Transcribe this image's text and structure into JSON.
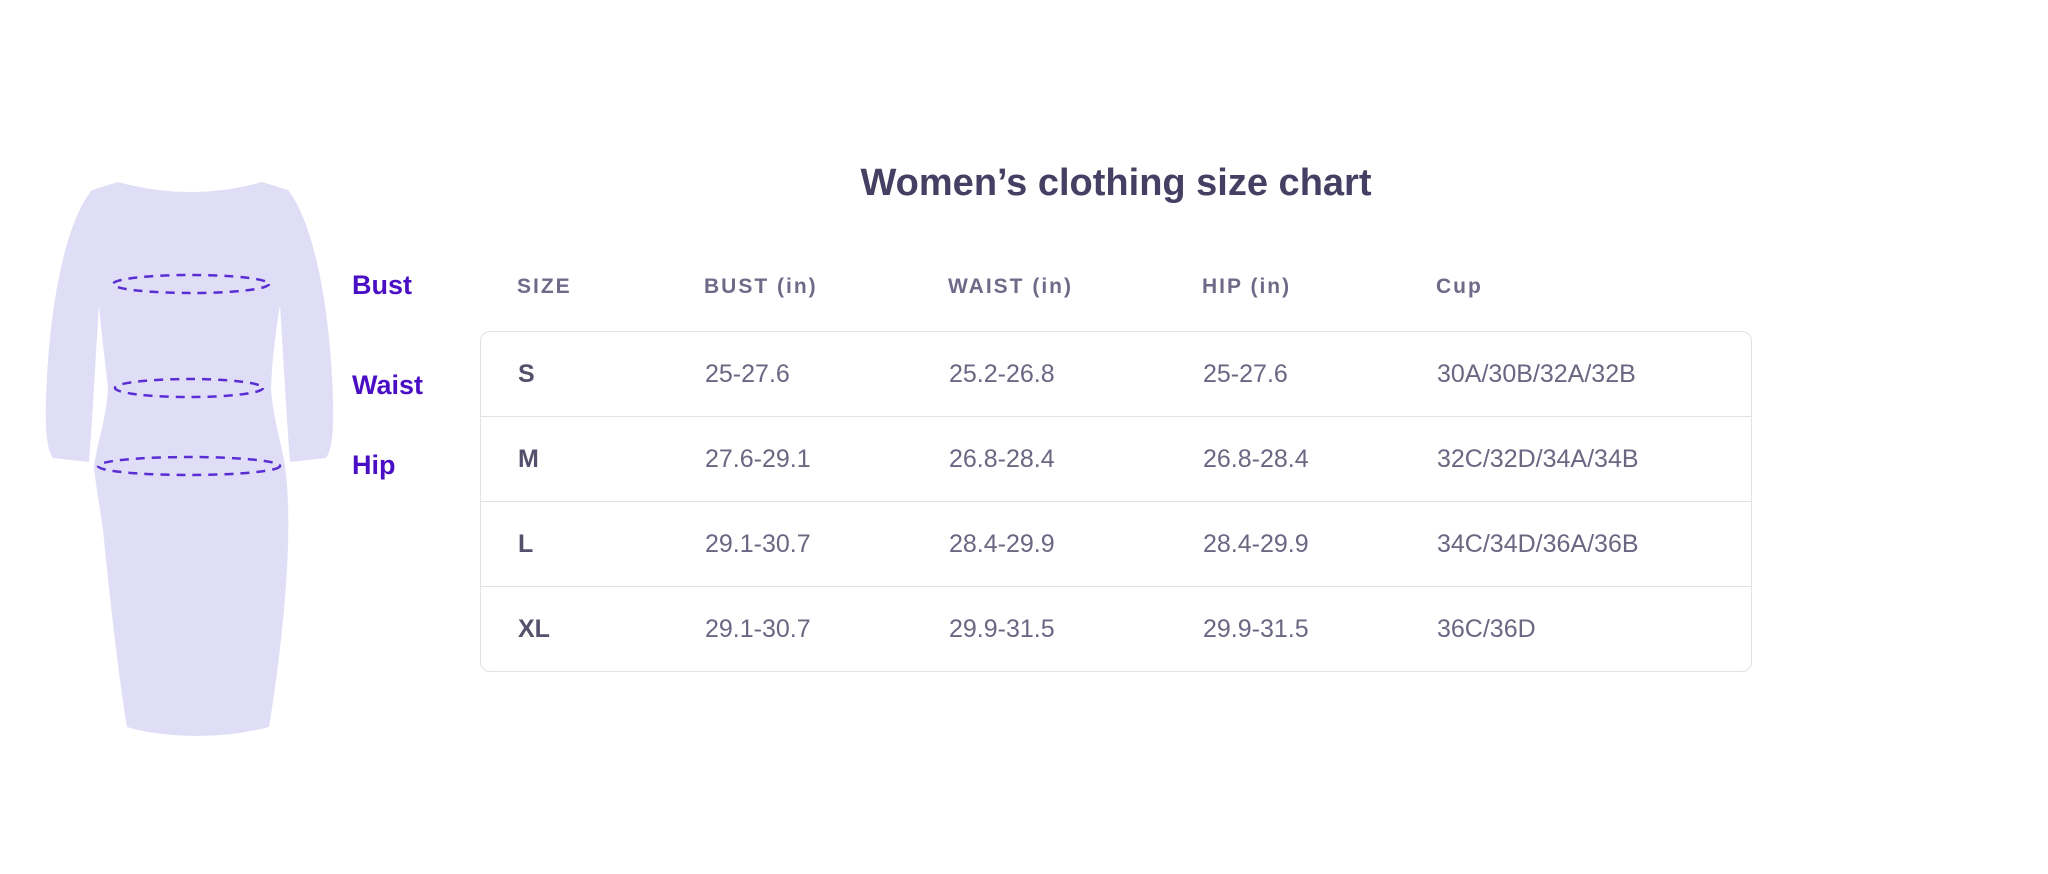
{
  "title": "Women’s clothing size chart",
  "illustration": {
    "labels": [
      {
        "id": "bust",
        "text": "Bust"
      },
      {
        "id": "waist",
        "text": "Waist"
      },
      {
        "id": "hip",
        "text": "Hip"
      }
    ]
  },
  "table": {
    "columns": [
      "SIZE",
      "BUST (in)",
      "WAIST (in)",
      "HIP (in)",
      "Cup"
    ],
    "rows": [
      [
        "S",
        "25-27.6",
        "25.2-26.8",
        "25-27.6",
        "30A/30B/32A/32B"
      ],
      [
        "M",
        "27.6-29.1",
        "26.8-28.4",
        "26.8-28.4",
        "32C/32D/34A/34B"
      ],
      [
        "L",
        "29.1-30.7",
        "28.4-29.9",
        "28.4-29.9",
        "34C/34D/36A/36B"
      ],
      [
        "XL",
        "29.1-30.7",
        "29.9-31.5",
        "29.9-31.5",
        "36C/36D"
      ]
    ]
  },
  "colors": {
    "accent_purple": "#4a0fc4",
    "ellipse_stroke": "#5a2dd3",
    "dress_fill": "#e0def7",
    "title_text": "#454063",
    "header_text": "#6f6a88",
    "cell_text": "#6b6682",
    "size_text": "#56506d",
    "table_border": "#e2e2e6",
    "page_bg": "#ffffff"
  }
}
